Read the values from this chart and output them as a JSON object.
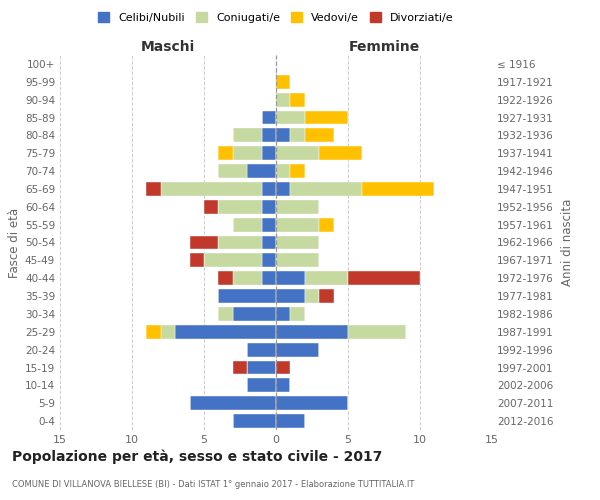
{
  "age_groups": [
    "0-4",
    "5-9",
    "10-14",
    "15-19",
    "20-24",
    "25-29",
    "30-34",
    "35-39",
    "40-44",
    "45-49",
    "50-54",
    "55-59",
    "60-64",
    "65-69",
    "70-74",
    "75-79",
    "80-84",
    "85-89",
    "90-94",
    "95-99",
    "100+"
  ],
  "birth_years": [
    "2012-2016",
    "2007-2011",
    "2002-2006",
    "1997-2001",
    "1992-1996",
    "1987-1991",
    "1982-1986",
    "1977-1981",
    "1972-1976",
    "1967-1971",
    "1962-1966",
    "1957-1961",
    "1952-1956",
    "1947-1951",
    "1942-1946",
    "1937-1941",
    "1932-1936",
    "1927-1931",
    "1922-1926",
    "1917-1921",
    "≤ 1916"
  ],
  "male": {
    "celibi": [
      3,
      6,
      2,
      2,
      2,
      7,
      3,
      4,
      1,
      1,
      1,
      1,
      1,
      1,
      2,
      1,
      1,
      1,
      0,
      0,
      0
    ],
    "coniugati": [
      0,
      0,
      0,
      0,
      0,
      1,
      1,
      0,
      2,
      4,
      3,
      2,
      3,
      7,
      2,
      2,
      2,
      0,
      0,
      0,
      0
    ],
    "vedovi": [
      0,
      0,
      0,
      0,
      0,
      1,
      0,
      0,
      0,
      0,
      0,
      0,
      0,
      0,
      0,
      1,
      0,
      0,
      0,
      0,
      0
    ],
    "divorziati": [
      0,
      0,
      0,
      1,
      0,
      0,
      0,
      0,
      1,
      1,
      2,
      0,
      1,
      1,
      0,
      0,
      0,
      0,
      0,
      0,
      0
    ]
  },
  "female": {
    "nubili": [
      2,
      5,
      1,
      0,
      3,
      5,
      1,
      2,
      2,
      0,
      0,
      0,
      0,
      1,
      0,
      0,
      1,
      0,
      0,
      0,
      0
    ],
    "coniugate": [
      0,
      0,
      0,
      0,
      0,
      4,
      1,
      1,
      3,
      3,
      3,
      3,
      3,
      5,
      1,
      3,
      1,
      2,
      1,
      0,
      0
    ],
    "vedove": [
      0,
      0,
      0,
      0,
      0,
      0,
      0,
      0,
      0,
      0,
      0,
      1,
      0,
      5,
      1,
      3,
      2,
      3,
      1,
      1,
      0
    ],
    "divorziate": [
      0,
      0,
      0,
      1,
      0,
      0,
      0,
      1,
      5,
      0,
      0,
      0,
      0,
      0,
      0,
      0,
      0,
      0,
      0,
      0,
      0
    ]
  },
  "colors": {
    "celibi": "#4472C4",
    "coniugati": "#c5d9a0",
    "vedovi": "#ffc000",
    "divorziati": "#c0392b"
  },
  "xlim": 15,
  "title": "Popolazione per età, sesso e stato civile - 2017",
  "subtitle": "COMUNE DI VILLANOVA BIELLESE (BI) - Dati ISTAT 1° gennaio 2017 - Elaborazione TUTTITALIA.IT",
  "legend_labels": [
    "Celibi/Nubili",
    "Coniugati/e",
    "Vedovi/e",
    "Divorziati/e"
  ],
  "legend_colors": [
    "#4472C4",
    "#c5d9a0",
    "#ffc000",
    "#c0392b"
  ],
  "xlabel_left": "Maschi",
  "xlabel_right": "Femmine",
  "ylabel_left": "Fasce di età",
  "ylabel_right": "Anni di nascita",
  "bg_color": "#ffffff",
  "grid_color": "#cccccc"
}
